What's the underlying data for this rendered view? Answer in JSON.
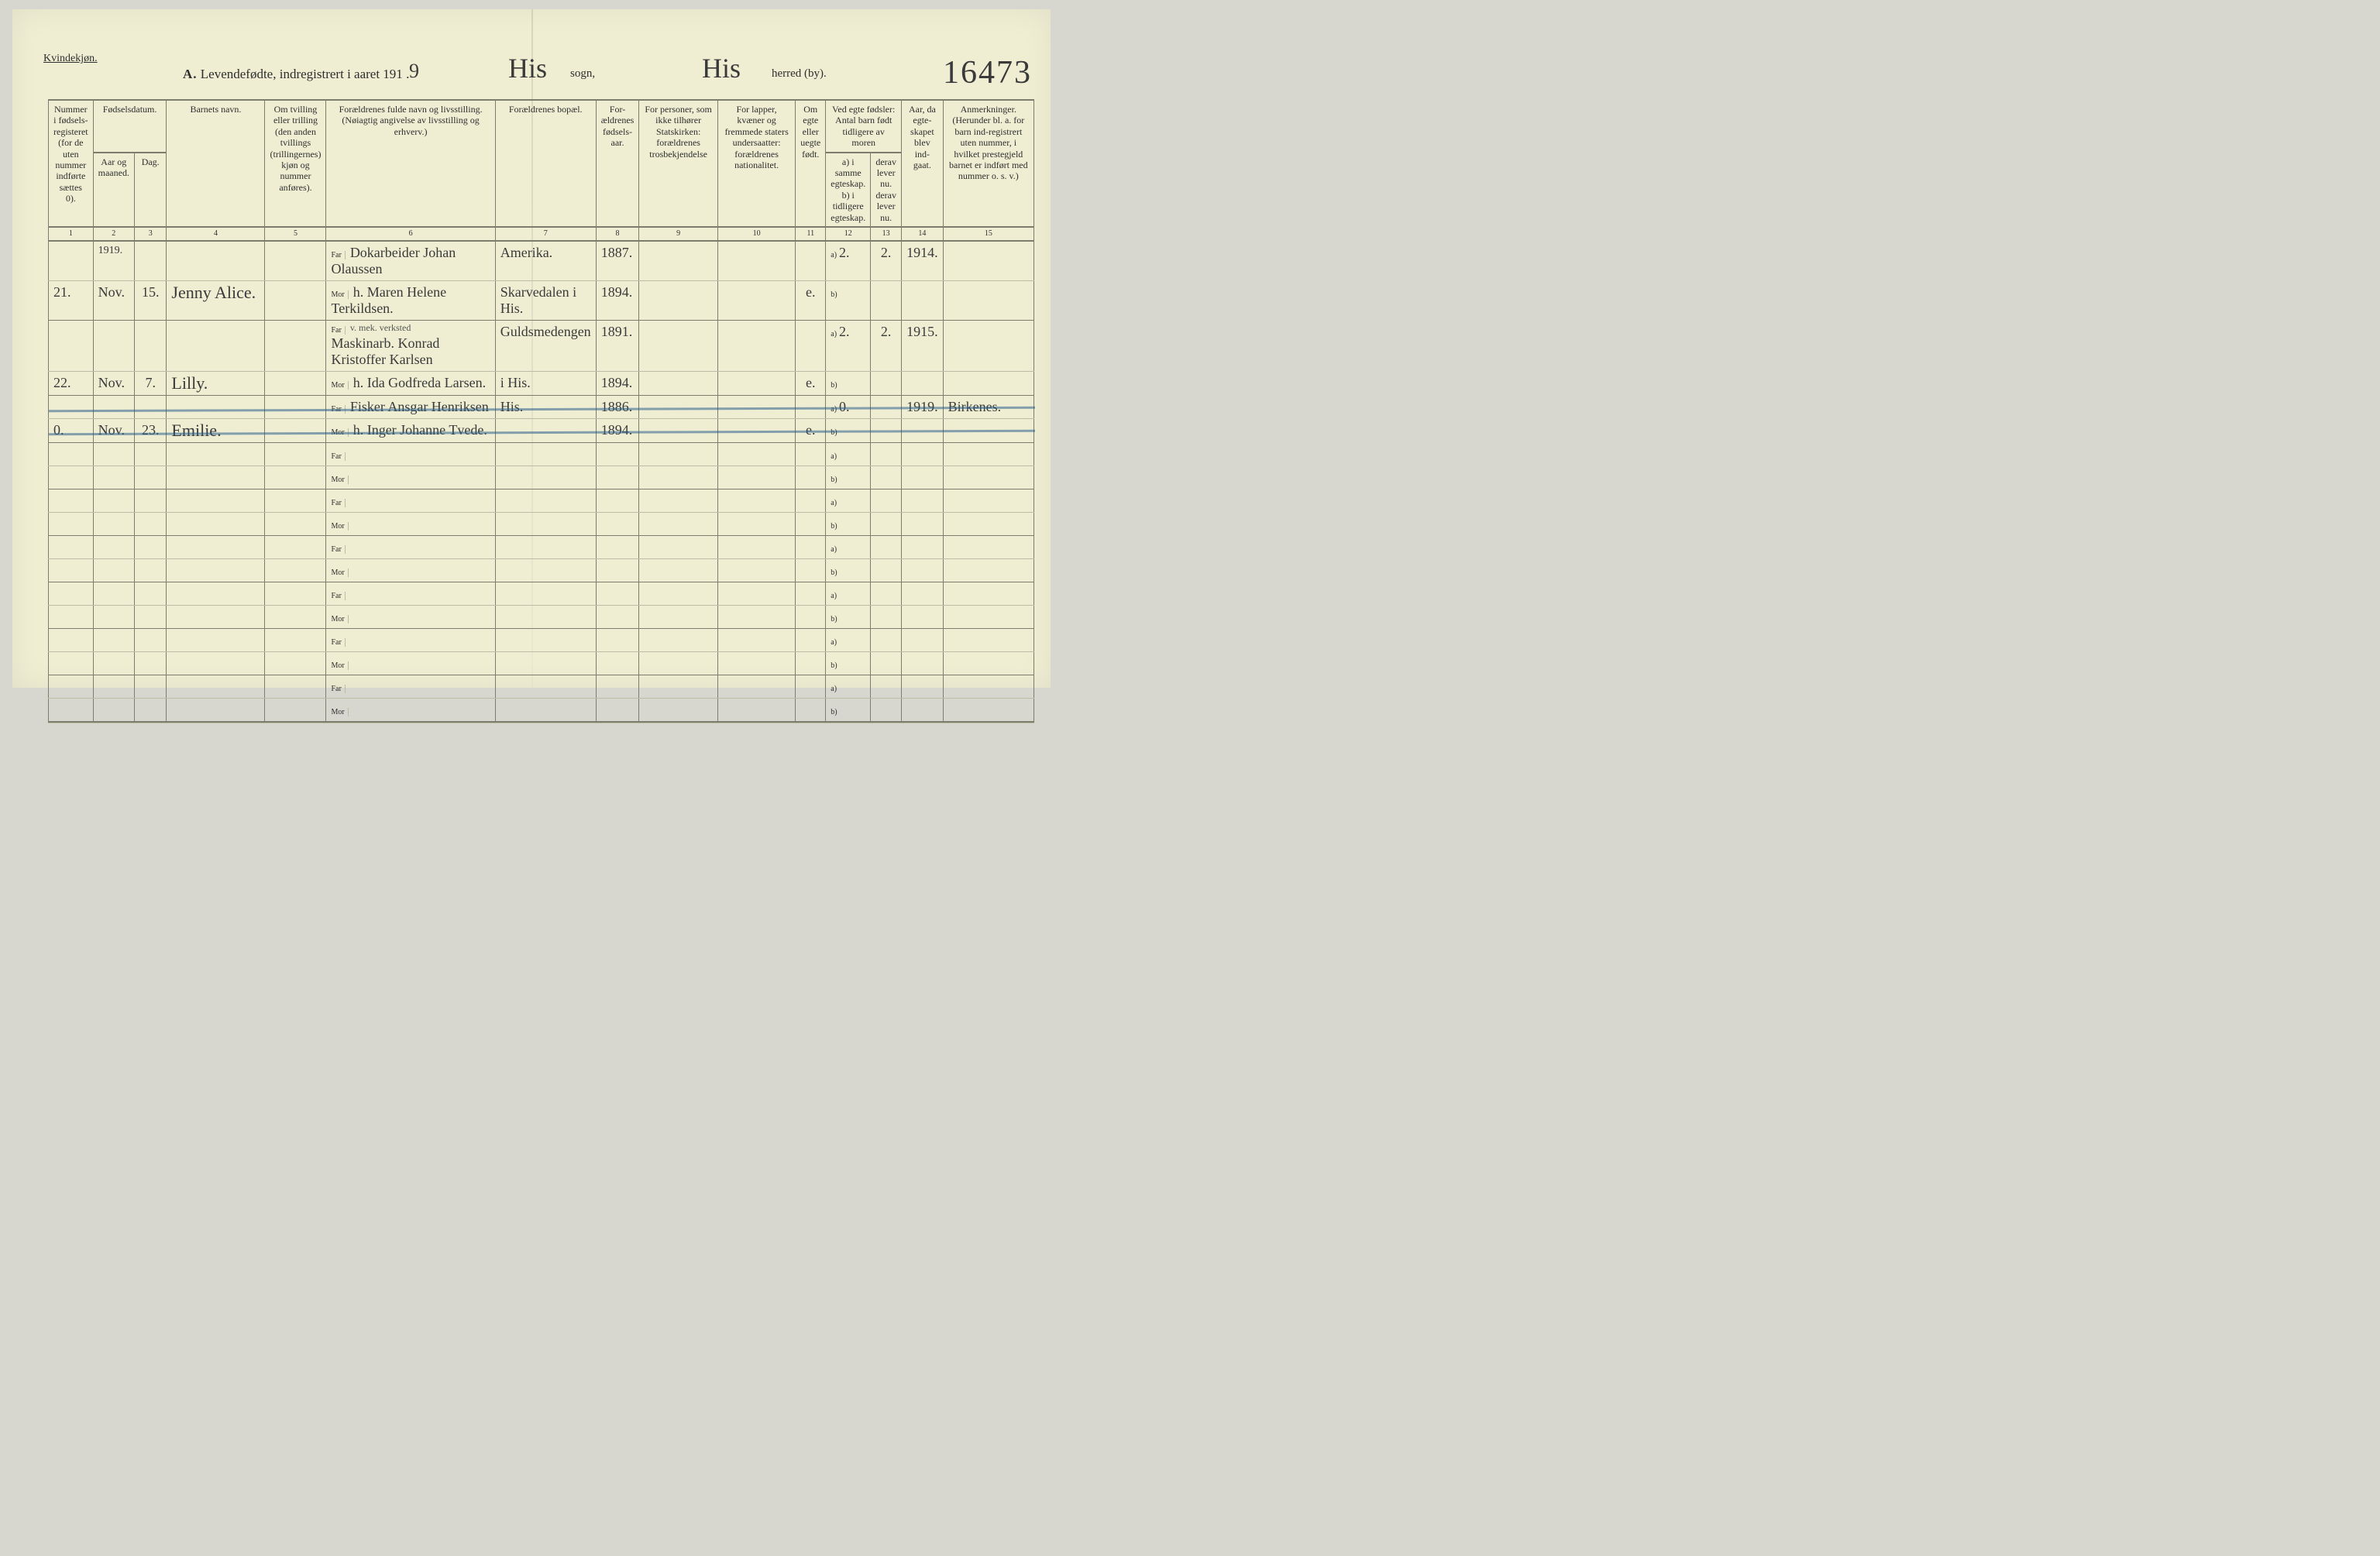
{
  "page": {
    "gender_heading": "Kvindekjøn.",
    "section": "A.",
    "section_title": "Levendefødte, indregistrert i aaret 191",
    "year_printed_suffix": ".",
    "year_handwritten_digit": "9",
    "sogn_label": "sogn,",
    "sogn_value": "His",
    "herred_label": "herred (by).",
    "herred_value": "His",
    "stamp_number": "16473",
    "background_color": "#efeed3",
    "rule_color": "#7d7d6e",
    "strike_color": "#2a5f8a"
  },
  "columns": {
    "c1": "Nummer i fødsels-registeret (for de uten nummer indførte sættes 0).",
    "c2_group": "Fødselsdatum.",
    "c2a": "Aar og maaned.",
    "c2b": "Dag.",
    "c3": "Barnets navn.",
    "c4": "Om tvilling eller trilling (den anden tvillings (trillingernes) kjøn og nummer anføres).",
    "c5": "Forældrenes fulde navn og livsstilling. (Nøiagtig angivelse av livsstilling og erhverv.)",
    "c6": "Forældrenes bopæl.",
    "c7": "For-ældrenes fødsels-aar.",
    "c8": "For personer, som ikke tilhører Statskirken: forældrenes trosbekjendelse",
    "c9": "For lapper, kvæner og fremmede staters undersaatter: forældrenes nationalitet.",
    "c10": "Om egte eller uegte født.",
    "c11_group": "Ved egte fødsler: Antal barn født tidligere av moren",
    "c11a": "a) i samme egteskap.\nb) i tidligere egteskap.",
    "c11b": "derav lever nu.\nderav lever nu.",
    "c12": "Aar, da egte-skapet blev ind-gaat.",
    "c13": "Anmerkninger. (Herunder bl. a. for barn ind-registrert uten nummer, i hvilket prestegjeld barnet er indført med nummer o. s. v.)",
    "far_label": "Far",
    "mor_label": "Mor",
    "a_label": "a)",
    "b_label": "b)"
  },
  "col_numbers": [
    "1",
    "2",
    "3",
    "4",
    "5",
    "6",
    "7",
    "8",
    "9",
    "10",
    "11",
    "12",
    "13",
    "14",
    "15"
  ],
  "rows": [
    {
      "num": "21.",
      "month_year_top": "1919.",
      "month": "Nov.",
      "day": "15.",
      "name": "Jenny Alice.",
      "twin": "",
      "far": "Dokarbeider Johan Olaussen",
      "mor": "h. Maren Helene Terkildsen.",
      "bopel_far": "Amerika.",
      "bopel_mor": "Skarvedalen i His.",
      "aar_far": "1887.",
      "aar_mor": "1894.",
      "tros": "",
      "nat": "",
      "egte": "e.",
      "a_val": "2.",
      "b_val": "",
      "lever": "2.",
      "egteskap_aar": "1914.",
      "anm": "",
      "struck": false
    },
    {
      "num": "22.",
      "month_year_top": "",
      "month": "Nov.",
      "day": "7.",
      "name": "Lilly.",
      "twin": "",
      "far_prefix_note": "v. mek. verksted",
      "far": "Maskinarb. Konrad Kristoffer Karlsen",
      "mor": "h. Ida Godfreda Larsen.",
      "bopel_far": "Guldsmedengen",
      "bopel_mor": "i His.",
      "aar_far": "1891.",
      "aar_mor": "1894.",
      "tros": "",
      "nat": "",
      "egte": "e.",
      "a_val": "2.",
      "b_val": "",
      "lever": "2.",
      "egteskap_aar": "1915.",
      "anm": "",
      "struck": false
    },
    {
      "num": "0.",
      "month_year_top": "",
      "month": "Nov.",
      "day": "23.",
      "name": "Emilie.",
      "twin": "",
      "far": "Fisker Ansgar Henriksen",
      "mor": "h. Inger Johanne Tvede.",
      "bopel_far": "His.",
      "bopel_mor": "",
      "aar_far": "1886.",
      "aar_mor": "1894.",
      "tros": "",
      "nat": "",
      "egte": "e.",
      "a_val": "0.",
      "b_val": "",
      "lever": "",
      "egteskap_aar": "1919.",
      "anm": "Birkenes.",
      "struck": true
    }
  ],
  "blank_row_count": 6
}
